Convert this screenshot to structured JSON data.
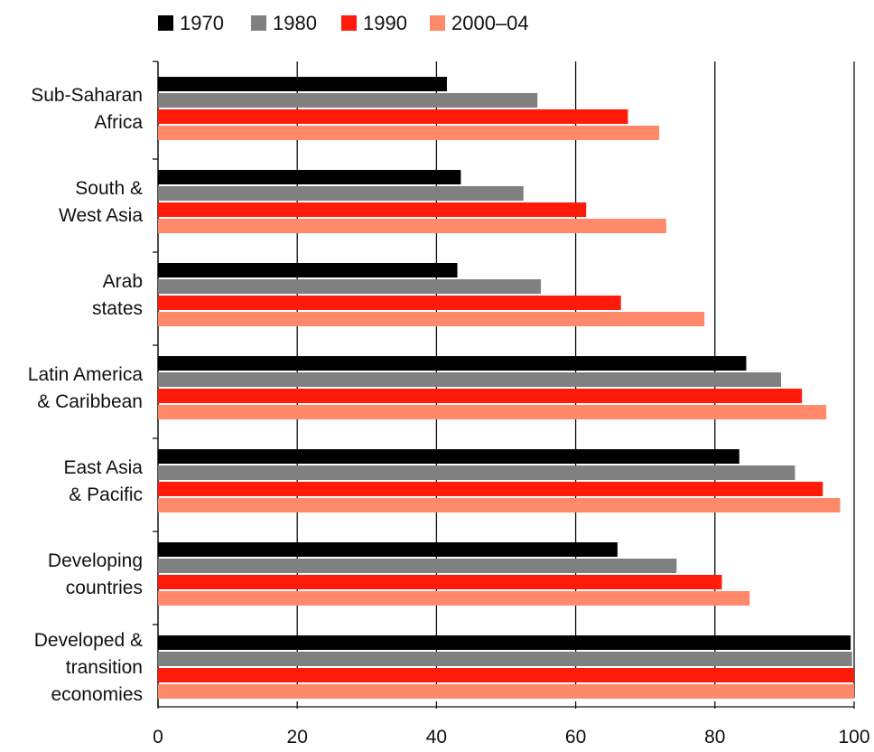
{
  "chart_data": {
    "type": "bar",
    "orientation": "horizontal",
    "categories": [
      [
        "Sub-Saharan",
        "Africa"
      ],
      [
        "South &",
        "West Asia"
      ],
      [
        "Arab",
        "states"
      ],
      [
        "Latin America",
        "& Caribbean"
      ],
      [
        "East Asia",
        "& Pacific"
      ],
      [
        "Developing",
        "countries"
      ],
      [
        "Developed &",
        "transition",
        "economies"
      ]
    ],
    "series": [
      {
        "name": "1970",
        "color": "#000000",
        "values": [
          41.5,
          43.5,
          43,
          84.5,
          83.5,
          66,
          99.5
        ]
      },
      {
        "name": "1980",
        "color": "#808080",
        "values": [
          54.5,
          52.5,
          55,
          89.5,
          91.5,
          74.5,
          99.7
        ]
      },
      {
        "name": "1990",
        "color": "#ff1a0a",
        "values": [
          67.5,
          61.5,
          66.5,
          92.5,
          95.5,
          81,
          100
        ]
      },
      {
        "name": "2000–04",
        "color": "#ff8a6a",
        "values": [
          72,
          73,
          78.5,
          96,
          98,
          85,
          100
        ]
      }
    ],
    "xlim": [
      0,
      100
    ],
    "xticks": [
      "0",
      "20",
      "40",
      "60",
      "80",
      "100"
    ],
    "grid": true,
    "legend_position": "top",
    "title": "",
    "xlabel": "",
    "ylabel": ""
  }
}
